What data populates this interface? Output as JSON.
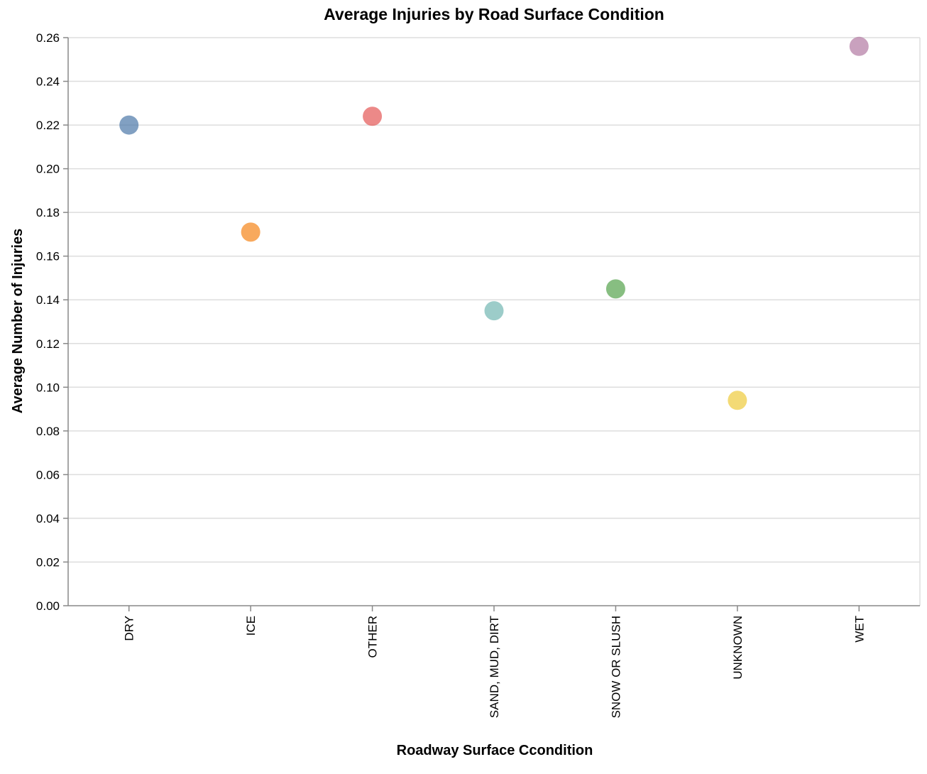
{
  "chart_data": {
    "type": "scatter",
    "title": "Average Injuries by Road Surface Condition",
    "xlabel": "Roadway Surface Ccondition",
    "ylabel": "Average Number of Injuries",
    "categories": [
      "DRY",
      "ICE",
      "OTHER",
      "SAND, MUD, DIRT",
      "SNOW OR SLUSH",
      "UNKNOWN",
      "WET"
    ],
    "values": [
      0.22,
      0.171,
      0.224,
      0.135,
      0.145,
      0.094,
      0.256
    ],
    "colors": [
      "#4c78a8",
      "#f58518",
      "#e45756",
      "#72b7b2",
      "#54a24b",
      "#eeca3b",
      "#b279a2"
    ],
    "ylim": [
      0,
      0.26
    ],
    "yticks": [
      "0.00",
      "0.02",
      "0.04",
      "0.06",
      "0.08",
      "0.10",
      "0.12",
      "0.14",
      "0.16",
      "0.18",
      "0.20",
      "0.22",
      "0.24",
      "0.26"
    ],
    "grid": true,
    "legend": "none"
  }
}
